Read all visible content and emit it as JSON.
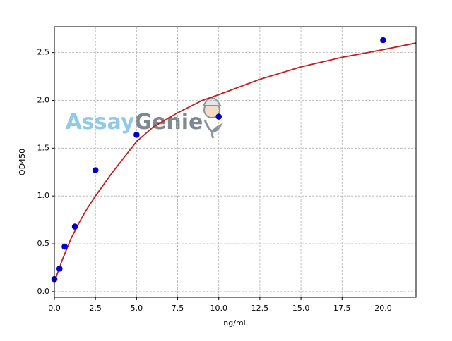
{
  "chart_data": {
    "type": "scatter",
    "xlabel": "ng/ml",
    "ylabel": "OD450",
    "watermark": [
      "Assay",
      "Genie"
    ],
    "xlim": [
      0,
      22
    ],
    "ylim": [
      -0.06,
      2.77
    ],
    "xticks": [
      {
        "value": 0,
        "label": "0.0"
      },
      2.5,
      {
        "value": 5,
        "label": "5.0"
      },
      7.5,
      {
        "value": 10,
        "label": "10.0"
      },
      12.5,
      {
        "value": 15,
        "label": "15.0"
      },
      17.5,
      {
        "value": 20,
        "label": "20.0"
      }
    ],
    "yticks": [
      {
        "value": 0,
        "label": "0.0"
      },
      0.5,
      {
        "value": 1,
        "label": "1.0"
      },
      1.5,
      {
        "value": 2,
        "label": "2.0"
      },
      2.5
    ],
    "grid": true,
    "series": [
      {
        "type": "scatter",
        "color": "#0000cc",
        "x": [
          0,
          0.3125,
          0.625,
          1.25,
          2.5,
          5,
          10,
          20
        ],
        "values": [
          0.13,
          0.24,
          0.47,
          0.68,
          1.27,
          1.64,
          1.83,
          2.63
        ]
      },
      {
        "type": "line",
        "color": "#c0201e",
        "x": [
          0,
          0.25,
          0.5,
          1,
          1.5,
          2,
          2.5,
          3.5,
          5,
          6,
          7.5,
          9,
          10,
          12.5,
          15,
          17.5,
          20,
          22
        ],
        "values": [
          0.1,
          0.22,
          0.34,
          0.55,
          0.72,
          0.87,
          1.0,
          1.24,
          1.57,
          1.72,
          1.87,
          2.0,
          2.06,
          2.22,
          2.35,
          2.45,
          2.53,
          2.6
        ]
      }
    ]
  }
}
